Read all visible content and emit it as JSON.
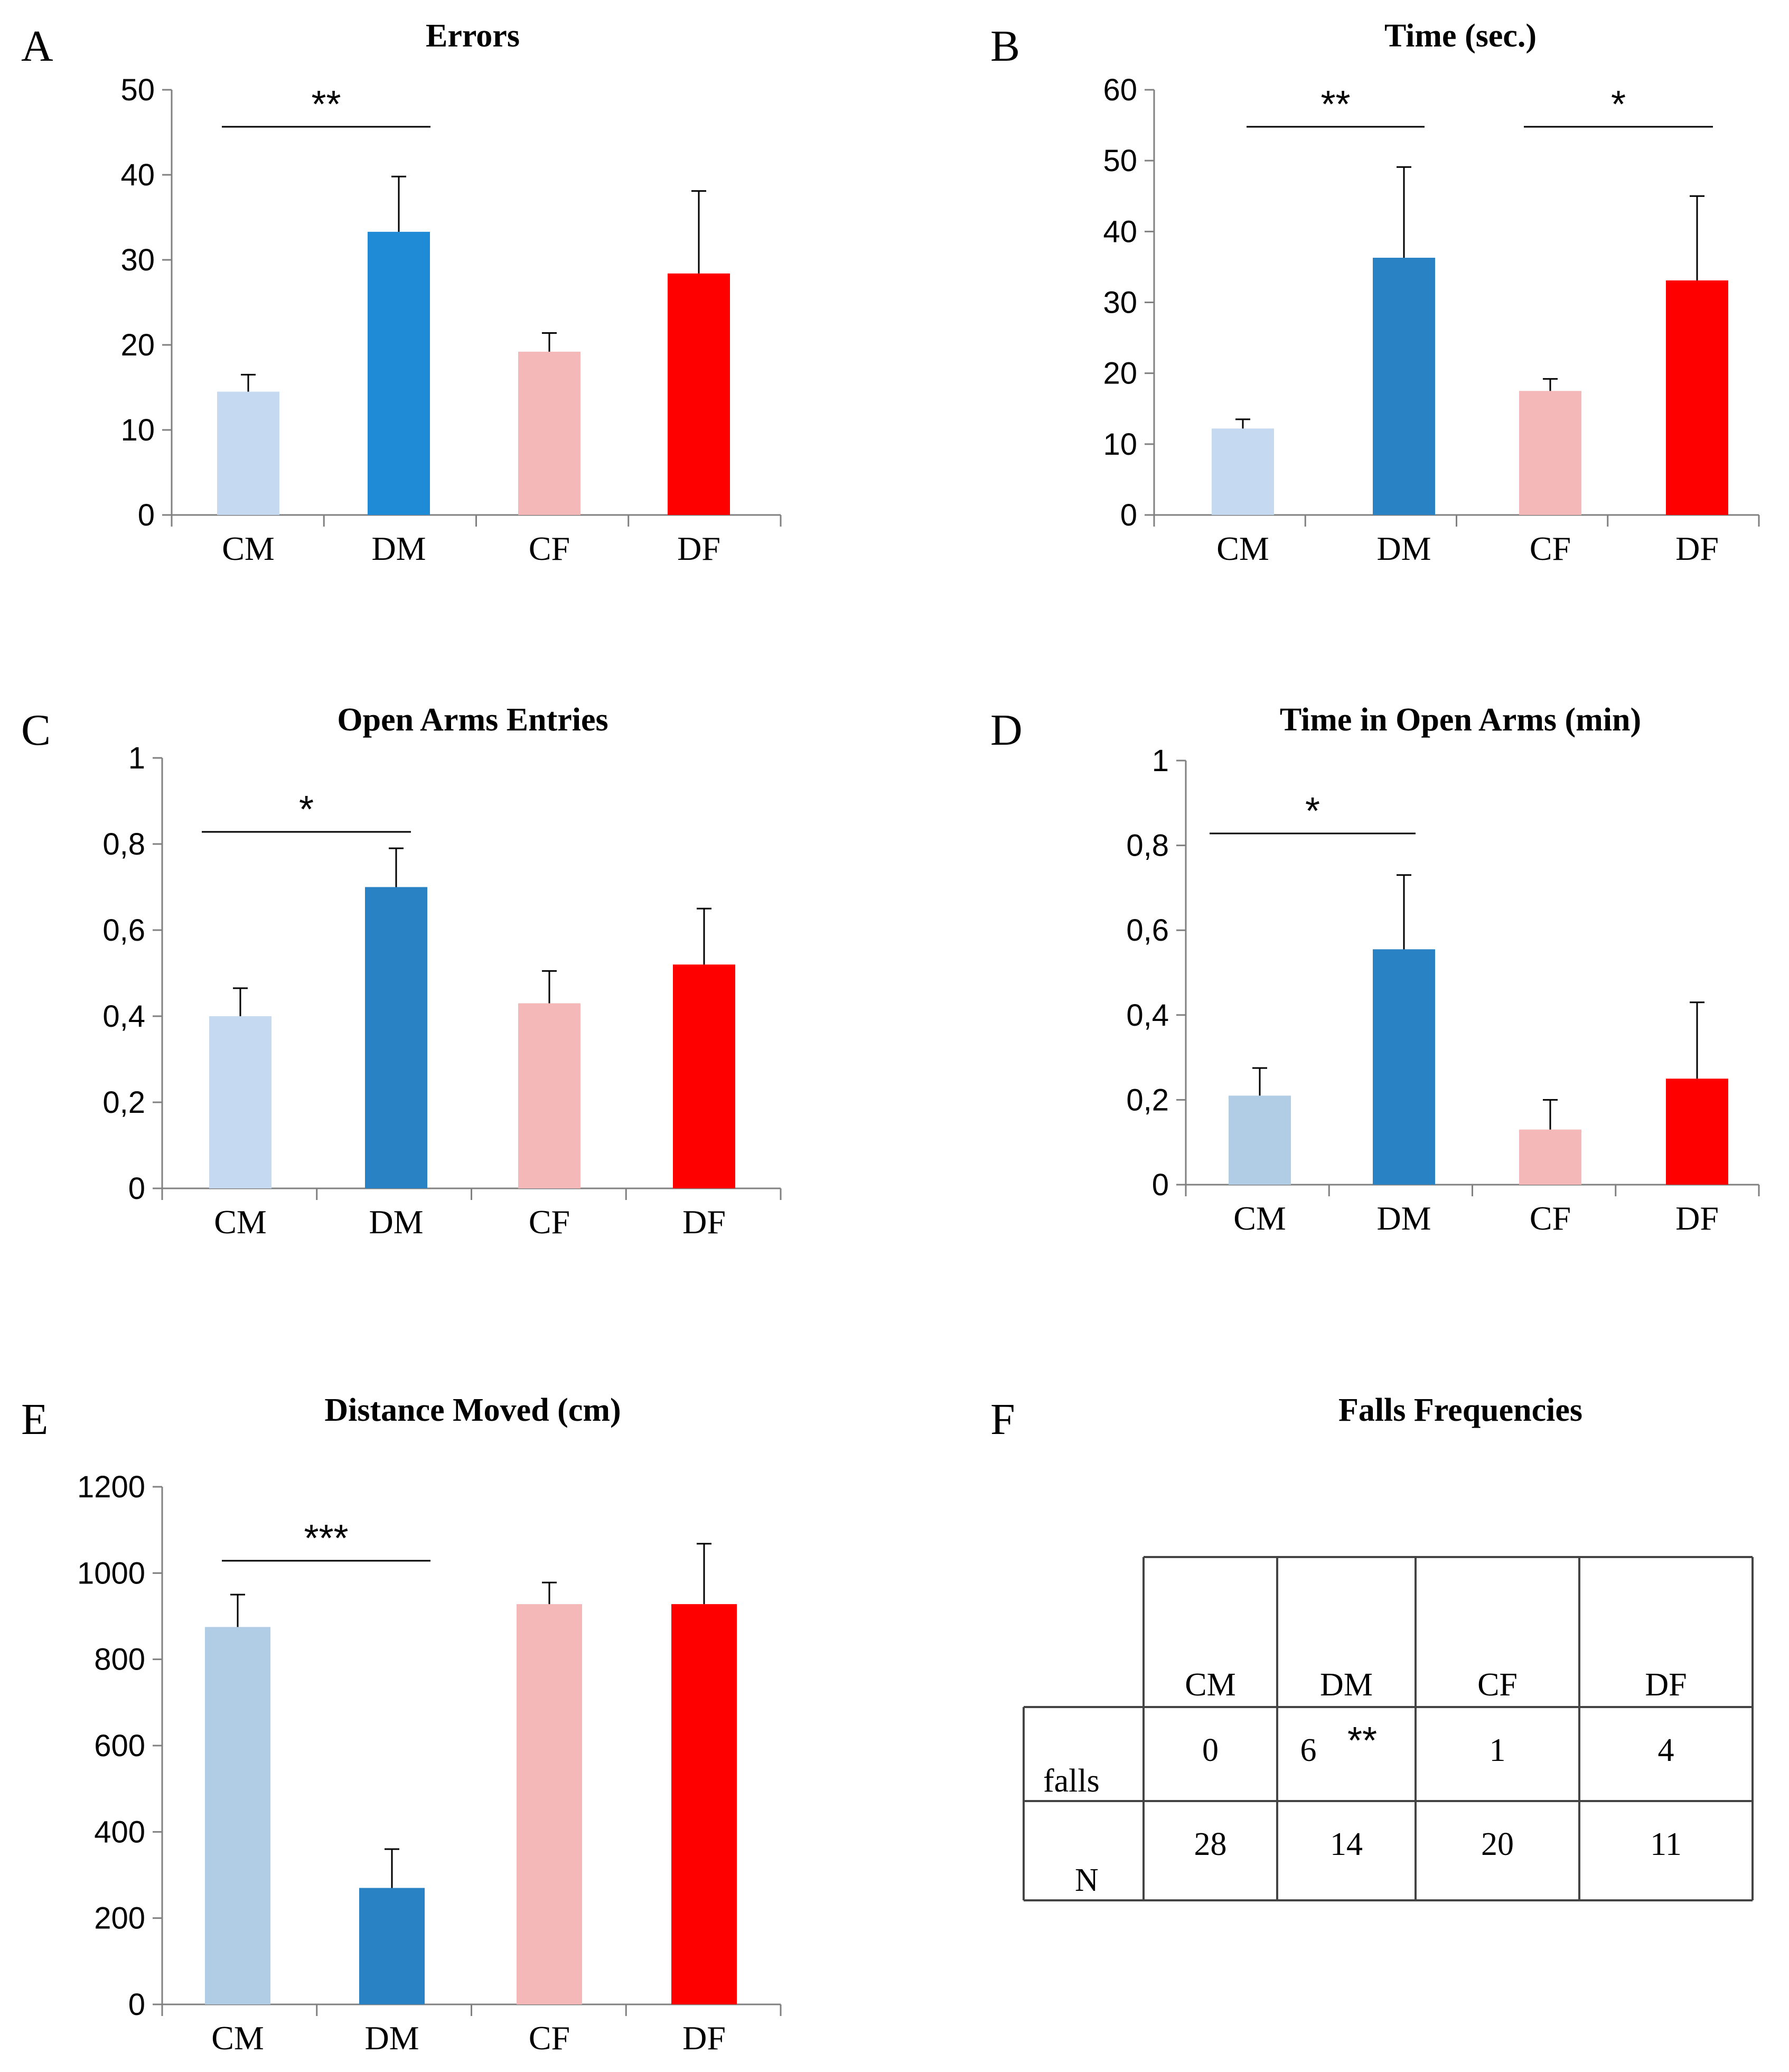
{
  "chart_data": [
    {
      "type": "bar",
      "panel": "A",
      "title": "Errors",
      "categories": [
        "CM",
        "DM",
        "CF",
        "DF"
      ],
      "values": [
        14.5,
        33.3,
        19.2,
        28.4
      ],
      "errors": [
        2.0,
        6.5,
        2.2,
        9.7
      ],
      "colors": [
        "#c5d9f1",
        "#1f8ad6",
        "#f4b8b8",
        "#ff0000"
      ],
      "ylim": [
        0,
        50
      ],
      "yticks": [
        "0",
        "10",
        "20",
        "30",
        "40",
        "50"
      ],
      "significance": [
        {
          "from": 0,
          "to": 1,
          "label": "**"
        }
      ]
    },
    {
      "type": "bar",
      "panel": "B",
      "title": "Time (sec.)",
      "categories": [
        "CM",
        "DM",
        "CF",
        "DF"
      ],
      "values": [
        12.2,
        36.3,
        17.5,
        33.1
      ],
      "errors": [
        1.3,
        12.8,
        1.7,
        11.9
      ],
      "colors": [
        "#c5d9f1",
        "#2882c4",
        "#f4b8b8",
        "#ff0000"
      ],
      "ylim": [
        0,
        60
      ],
      "yticks": [
        "0",
        "10",
        "20",
        "30",
        "40",
        "50",
        "60"
      ],
      "significance": [
        {
          "from": 0,
          "to": 1,
          "label": "**"
        },
        {
          "from": 2,
          "to": 3,
          "label": "*"
        }
      ]
    },
    {
      "type": "bar",
      "panel": "C",
      "title": "Open Arms Entries",
      "categories": [
        "CM",
        "DM",
        "CF",
        "DF"
      ],
      "values": [
        0.4,
        0.7,
        0.43,
        0.52
      ],
      "errors": [
        0.065,
        0.09,
        0.075,
        0.13
      ],
      "colors": [
        "#c5d9f1",
        "#2882c4",
        "#f4b8b8",
        "#ff0000"
      ],
      "ylim": [
        0,
        1
      ],
      "yticks": [
        "0",
        "0,2",
        "0,4",
        "0,6",
        "0,8",
        "1"
      ],
      "significance": [
        {
          "from": 0,
          "to": 1,
          "label": "*"
        }
      ]
    },
    {
      "type": "bar",
      "panel": "D",
      "title": "Time in  Open Arms (min)",
      "categories": [
        "CM",
        "DM",
        "CF",
        "DF"
      ],
      "values": [
        0.21,
        0.555,
        0.13,
        0.25
      ],
      "errors": [
        0.065,
        0.175,
        0.07,
        0.18
      ],
      "colors": [
        "#b1cde6",
        "#2882c4",
        "#f4b8b8",
        "#ff0000"
      ],
      "ylim": [
        0,
        1
      ],
      "yticks": [
        "0",
        "0,2",
        "0,4",
        "0,6",
        "0,8",
        "1"
      ],
      "significance": [
        {
          "from": 0,
          "to": 1,
          "label": "*"
        }
      ]
    },
    {
      "type": "bar",
      "panel": "E",
      "title": "Distance Moved  (cm)",
      "categories": [
        "CM",
        "DM",
        "CF",
        "DF"
      ],
      "values": [
        875,
        270,
        928,
        928
      ],
      "errors": [
        75,
        90,
        50,
        140
      ],
      "colors": [
        "#b1cde6",
        "#2882c4",
        "#f4b8b8",
        "#ff0000"
      ],
      "ylim": [
        0,
        1200
      ],
      "yticks": [
        "0",
        "200",
        "400",
        "600",
        "800",
        "1000",
        "1200"
      ],
      "significance": [
        {
          "from": 0,
          "to": 1,
          "label": "***"
        }
      ]
    },
    {
      "type": "table",
      "panel": "F",
      "title": "Falls Frequencies",
      "columns": [
        "CM",
        "DM",
        "CF",
        "DF"
      ],
      "rows": [
        {
          "label": "falls",
          "values": [
            "0",
            "6",
            "1",
            "4"
          ],
          "annotation": {
            "column": 1,
            "label": "**"
          }
        },
        {
          "label": "N",
          "values": [
            "28",
            "14",
            "20",
            "11"
          ]
        }
      ]
    }
  ]
}
